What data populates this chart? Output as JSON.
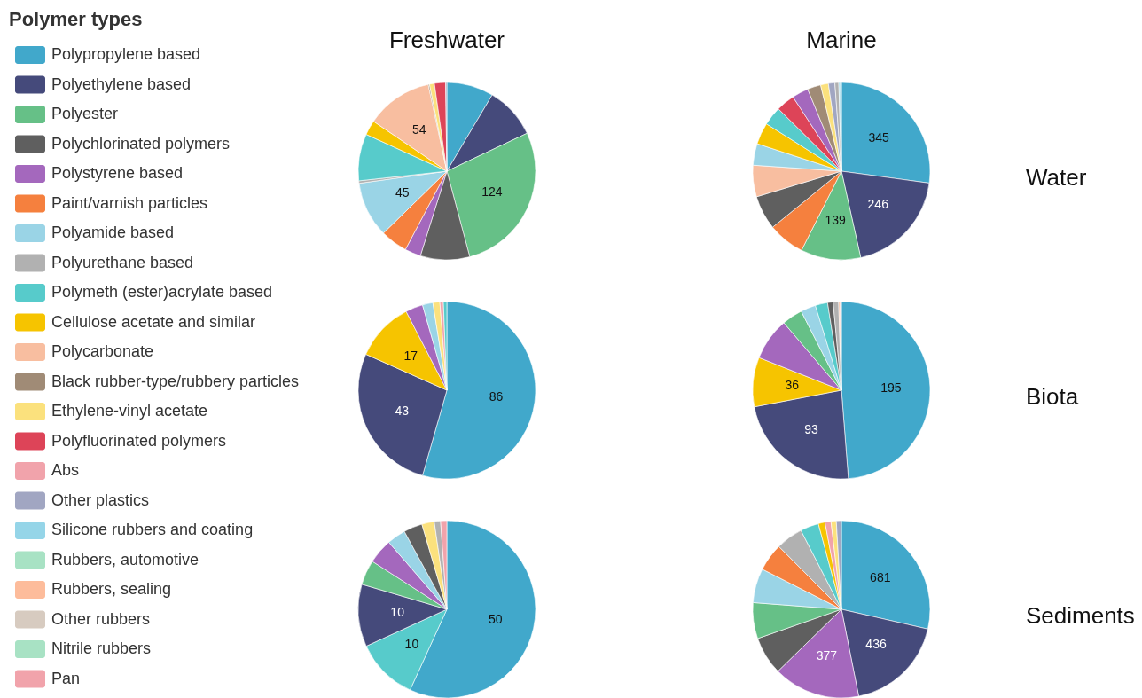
{
  "chart_data": [
    {
      "type": "pie",
      "title": "Freshwater",
      "legend_title": "Polymer types",
      "legend": "left",
      "categories": [
        "Polypropylene based",
        "Polyethylene based",
        "Polyester",
        "Polychlorinated polymers",
        "Polystyrene based",
        "Paint/varnish particles",
        "Polyamide based",
        "Polyurethane based",
        "Polymeth (ester)acrylate based",
        "Cellulose acetate and similar",
        "Polycarbonate",
        "Black rubber-type/rubbery particles",
        "Ethylene-vinyl acetate",
        "Polyfluorinated polymers",
        "Abs",
        "Other plastics",
        "Silicone rubbers and coating",
        "Rubbers, automotive",
        "Rubbers, sealing",
        "Other rubbers",
        "Nitrile rubbers",
        "Pan"
      ],
      "values": [
        38,
        42,
        124,
        40,
        13,
        22,
        45,
        2,
        38,
        12,
        54,
        1,
        4,
        9,
        null,
        1,
        null,
        null,
        null,
        null,
        null,
        null
      ],
      "colors": [
        "#41a8cb",
        "#454a7b",
        "#66c087",
        "#5f5f5f",
        "#a468bd",
        "#f5803e",
        "#9ad4e6",
        "#b1b1b1",
        "#57cbcb",
        "#f6c400",
        "#f8bea0",
        "#a08b76",
        "#fbe17d",
        "#dd4458",
        "#f1a3ab",
        "#a1a6c2",
        "#95d5e8",
        "#a8e2c4",
        "#fdbc9b",
        "#d7cbc0",
        "#a8e2c4",
        "#f1a3ab"
      ],
      "value_labels": [
        null,
        null,
        "124",
        null,
        null,
        null,
        "45",
        null,
        null,
        null,
        "54",
        null,
        null,
        null,
        null,
        null,
        null,
        null,
        null,
        null,
        null,
        null
      ]
    },
    {
      "type": "pie",
      "title": "Marine",
      "annotations": [
        "Water"
      ],
      "categories": [
        null,
        null,
        null,
        null,
        null,
        null,
        null,
        null,
        null,
        null,
        null,
        null,
        null,
        null,
        null,
        null,
        null
      ],
      "values": [
        345,
        246,
        139,
        85,
        79,
        73,
        50,
        50,
        44,
        43,
        38,
        31,
        18,
        15,
        9,
        4,
        2
      ],
      "colors": [
        "#41a8cb",
        "#454a7b",
        "#66c087",
        "#f5803e",
        "#5f5f5f",
        "#f8bea0",
        "#9ad4e6",
        "#f6c400",
        "#57cbcb",
        "#dd4458",
        "#a468bd",
        "#a08b76",
        "#fbe17d",
        "#a1a6c2",
        "#b1b1b1",
        "#95d5e8",
        "#a8e2c4"
      ],
      "value_labels": [
        "345",
        "246",
        "139",
        null,
        null,
        null,
        null,
        null,
        null,
        null,
        null,
        null,
        null,
        null,
        null,
        null,
        null
      ]
    },
    {
      "type": "pie",
      "categories": [
        null,
        null,
        null,
        null,
        null,
        null,
        null,
        null
      ],
      "values": [
        86,
        43,
        17,
        5,
        3,
        2,
        1,
        1
      ],
      "colors": [
        "#41a8cb",
        "#454a7b",
        "#f6c400",
        "#a468bd",
        "#9ad4e6",
        "#fbe17d",
        "#f1a3ab",
        "#57cbcb"
      ],
      "value_labels": [
        "86",
        "43",
        "17",
        null,
        null,
        null,
        null,
        null
      ]
    },
    {
      "type": "pie",
      "annotations": [
        "Biota"
      ],
      "categories": [
        null,
        null,
        null,
        null,
        null,
        null,
        null,
        null,
        null,
        null,
        null
      ],
      "values": [
        195,
        93,
        36,
        31,
        15,
        11,
        9,
        4,
        4,
        1,
        1
      ],
      "colors": [
        "#41a8cb",
        "#454a7b",
        "#f6c400",
        "#a468bd",
        "#66c087",
        "#9ad4e6",
        "#57cbcb",
        "#5f5f5f",
        "#b1b1b1",
        "#f8bea0",
        "#f1a3ab"
      ],
      "value_labels": [
        "195",
        "93",
        "36",
        null,
        null,
        null,
        null,
        null,
        null,
        null,
        null
      ]
    },
    {
      "type": "pie",
      "categories": [
        null,
        null,
        null,
        null,
        null,
        null,
        null,
        null,
        null,
        null
      ],
      "values": [
        50,
        10,
        10,
        4,
        4,
        3,
        3,
        2,
        1,
        1
      ],
      "colors": [
        "#41a8cb",
        "#57cbcb",
        "#454a7b",
        "#66c087",
        "#a468bd",
        "#9ad4e6",
        "#5f5f5f",
        "#fbe17d",
        "#b1b1b1",
        "#f1a3ab"
      ],
      "value_labels": [
        "50",
        "10",
        "10",
        null,
        null,
        null,
        null,
        null,
        null,
        null
      ]
    },
    {
      "type": "pie",
      "annotations": [
        "Sediments"
      ],
      "categories": [
        null,
        null,
        null,
        null,
        null,
        null,
        null,
        null,
        null,
        null,
        null,
        null,
        null
      ],
      "values": [
        681,
        436,
        377,
        166,
        156,
        149,
        121,
        117,
        80,
        29,
        26,
        23,
        22
      ],
      "colors": [
        "#41a8cb",
        "#454a7b",
        "#a468bd",
        "#5f5f5f",
        "#66c087",
        "#9ad4e6",
        "#f5803e",
        "#b1b1b1",
        "#57cbcb",
        "#f6c400",
        "#f1a3ab",
        "#fbe17d",
        "#a1a6c2"
      ],
      "value_labels": [
        "681",
        "436",
        "377",
        null,
        null,
        null,
        null,
        null,
        null,
        null,
        null,
        null,
        null
      ]
    }
  ]
}
